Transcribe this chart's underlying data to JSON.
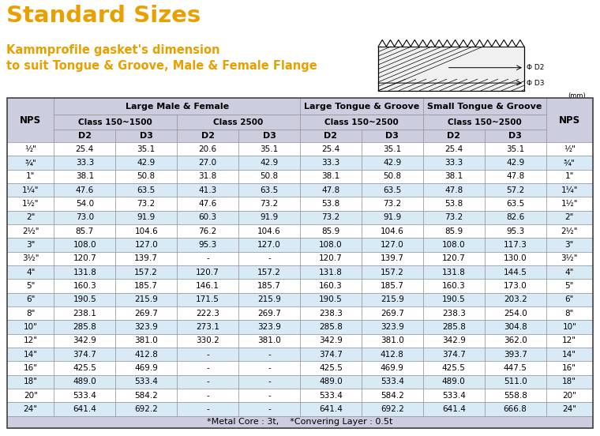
{
  "title1": "Standard Sizes",
  "title2": "Kammprofile gasket's dimension\nto suit Tongue & Groove, Male & Female Flange",
  "title_color": "#E8A000",
  "header_bg": "#CDCDE0",
  "row_bg_light": "#FFFFFF",
  "row_bg_alt": "#D8EAF5",
  "footer_text": "*Metal Core : 3t,    *Convering Layer : 0.5t",
  "nps": [
    "½\"",
    "¾\"",
    "1\"",
    "1¼\"",
    "1½\"",
    "2\"",
    "2½\"",
    "3\"",
    "3½\"",
    "4\"",
    "5\"",
    "6\"",
    "8\"",
    "10\"",
    "12\"",
    "14\"",
    "16\"",
    "18\"",
    "20\"",
    "24\""
  ],
  "data": [
    [
      "25.4",
      "35.1",
      "20.6",
      "35.1",
      "25.4",
      "35.1",
      "25.4",
      "35.1"
    ],
    [
      "33.3",
      "42.9",
      "27.0",
      "42.9",
      "33.3",
      "42.9",
      "33.3",
      "42.9"
    ],
    [
      "38.1",
      "50.8",
      "31.8",
      "50.8",
      "38.1",
      "50.8",
      "38.1",
      "47.8"
    ],
    [
      "47.6",
      "63.5",
      "41.3",
      "63.5",
      "47.8",
      "63.5",
      "47.8",
      "57.2"
    ],
    [
      "54.0",
      "73.2",
      "47.6",
      "73.2",
      "53.8",
      "73.2",
      "53.8",
      "63.5"
    ],
    [
      "73.0",
      "91.9",
      "60.3",
      "91.9",
      "73.2",
      "91.9",
      "73.2",
      "82.6"
    ],
    [
      "85.7",
      "104.6",
      "76.2",
      "104.6",
      "85.9",
      "104.6",
      "85.9",
      "95.3"
    ],
    [
      "108.0",
      "127.0",
      "95.3",
      "127.0",
      "108.0",
      "127.0",
      "108.0",
      "117.3"
    ],
    [
      "120.7",
      "139.7",
      "-",
      "-",
      "120.7",
      "139.7",
      "120.7",
      "130.0"
    ],
    [
      "131.8",
      "157.2",
      "120.7",
      "157.2",
      "131.8",
      "157.2",
      "131.8",
      "144.5"
    ],
    [
      "160.3",
      "185.7",
      "146.1",
      "185.7",
      "160.3",
      "185.7",
      "160.3",
      "173.0"
    ],
    [
      "190.5",
      "215.9",
      "171.5",
      "215.9",
      "190.5",
      "215.9",
      "190.5",
      "203.2"
    ],
    [
      "238.1",
      "269.7",
      "222.3",
      "269.7",
      "238.3",
      "269.7",
      "238.3",
      "254.0"
    ],
    [
      "285.8",
      "323.9",
      "273.1",
      "323.9",
      "285.8",
      "323.9",
      "285.8",
      "304.8"
    ],
    [
      "342.9",
      "381.0",
      "330.2",
      "381.0",
      "342.9",
      "381.0",
      "342.9",
      "362.0"
    ],
    [
      "374.7",
      "412.8",
      "-",
      "-",
      "374.7",
      "412.8",
      "374.7",
      "393.7"
    ],
    [
      "425.5",
      "469.9",
      "-",
      "-",
      "425.5",
      "469.9",
      "425.5",
      "447.5"
    ],
    [
      "489.0",
      "533.4",
      "-",
      "-",
      "489.0",
      "533.4",
      "489.0",
      "511.0"
    ],
    [
      "533.4",
      "584.2",
      "-",
      "-",
      "533.4",
      "584.2",
      "533.4",
      "558.8"
    ],
    [
      "641.4",
      "692.2",
      "-",
      "-",
      "641.4",
      "692.2",
      "641.4",
      "666.8"
    ]
  ]
}
